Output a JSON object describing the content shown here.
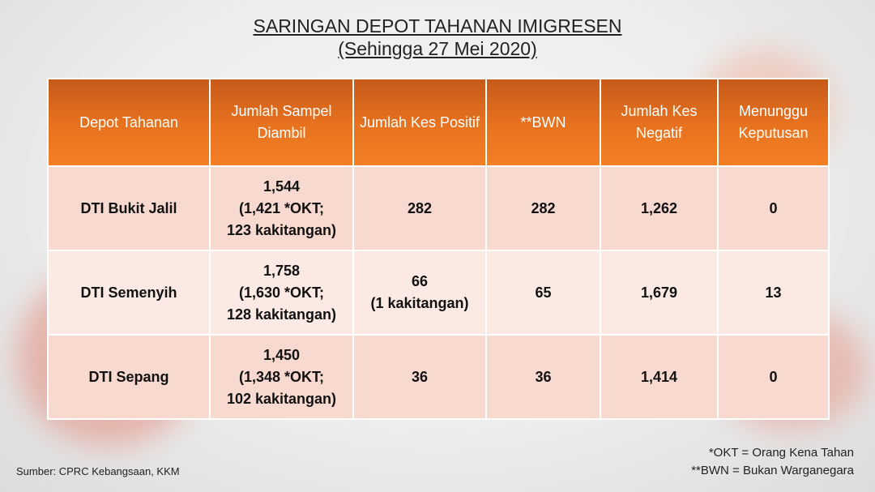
{
  "title": {
    "line1": "SARINGAN DEPOT TAHANAN IMIGRESEN",
    "line2": "(Sehingga 27 Mei 2020)"
  },
  "table": {
    "headers": [
      "Depot Tahanan",
      "Jumlah Sampel Diambil",
      "Jumlah Kes Positif",
      "**BWN",
      "Jumlah Kes Negatif",
      "Menunggu Keputusan"
    ],
    "rows": [
      {
        "depot": "DTI Bukit Jalil",
        "sampel": [
          "1,544",
          "(1,421 *OKT;",
          "123 kakitangan)"
        ],
        "positif": [
          "282"
        ],
        "bwn": "282",
        "negatif": "1,262",
        "menunggu": "0"
      },
      {
        "depot": "DTI Semenyih",
        "sampel": [
          "1,758",
          "(1,630 *OKT;",
          "128 kakitangan)"
        ],
        "positif": [
          "66",
          "(1 kakitangan)"
        ],
        "bwn": "65",
        "negatif": "1,679",
        "menunggu": "13"
      },
      {
        "depot": "DTI Sepang",
        "sampel": [
          "1,450",
          "(1,348 *OKT;",
          "102 kakitangan)"
        ],
        "positif": [
          "36"
        ],
        "bwn": "36",
        "negatif": "1,414",
        "menunggu": "0"
      }
    ]
  },
  "footer": {
    "source": "Sumber: CPRC Kebangsaan, KKM",
    "note1": "*OKT = Orang Kena Tahan",
    "note2": "**BWN = Bukan Warganegara"
  },
  "colors": {
    "header_orange": "#f37f26",
    "row_pink": "#f7d9d0",
    "row_light": "#fbe9e4"
  }
}
